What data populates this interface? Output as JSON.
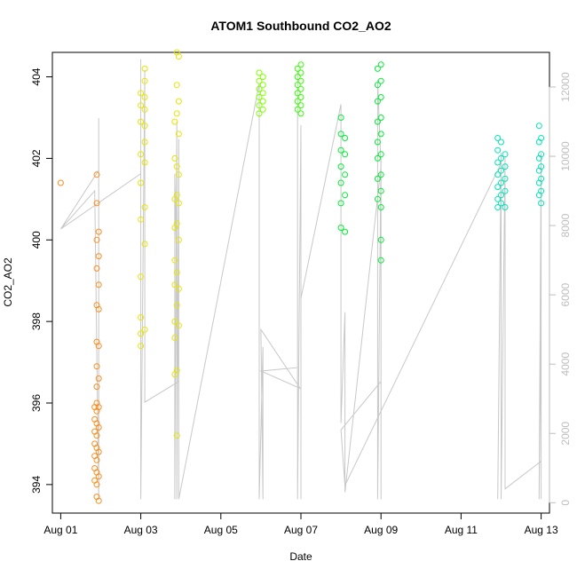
{
  "chart_data": {
    "type": "scatter",
    "title": "ATOM1 Southbound CO2_AO2",
    "xlabel": "Date",
    "ylabel": "CO2_AO2",
    "x_ticks": [
      {
        "label": "Aug 01",
        "day": 0
      },
      {
        "label": "Aug 03",
        "day": 2
      },
      {
        "label": "Aug 05",
        "day": 4
      },
      {
        "label": "Aug 07",
        "day": 6
      },
      {
        "label": "Aug 09",
        "day": 8
      },
      {
        "label": "Aug 11",
        "day": 10
      },
      {
        "label": "Aug 13",
        "day": 12
      }
    ],
    "xlim": [
      "2016-07-31 19:00",
      "2016-08-13 05:00"
    ],
    "ylim": [
      393.3,
      404.6
    ],
    "y_ticks": [
      "394",
      "396",
      "398",
      "400",
      "402",
      "404"
    ],
    "y2_ticks": [
      "0",
      "2000",
      "4000",
      "6000",
      "8000",
      "10000",
      "12000"
    ],
    "y2lim": [
      -300,
      13000
    ],
    "y2_color": "#bebebe",
    "line_color": "#c8c8c8",
    "grid": false,
    "legend": "none",
    "series": [
      {
        "color": "#ff8c1a",
        "x": "2016-07-31 / 2016-08-02 flight",
        "points": [
          [
            "2016-08-01 00:00",
            401.4
          ],
          [
            "2016-08-01 21:36",
            401.6
          ],
          [
            "2016-08-01 21:36",
            400.9
          ],
          [
            "2016-08-01 21:36",
            400.0
          ],
          [
            "2016-08-01 21:36",
            399.3
          ],
          [
            "2016-08-01 21:36",
            398.4
          ],
          [
            "2016-08-01 21:36",
            397.5
          ],
          [
            "2016-08-01 21:36",
            396.9
          ],
          [
            "2016-08-01 21:36",
            396.4
          ],
          [
            "2016-08-01 21:36",
            396.0
          ],
          [
            "2016-08-01 21:36",
            395.8
          ],
          [
            "2016-08-01 21:36",
            395.5
          ],
          [
            "2016-08-01 21:36",
            395.2
          ],
          [
            "2016-08-01 21:36",
            394.9
          ],
          [
            "2016-08-01 21:36",
            394.6
          ],
          [
            "2016-08-01 21:36",
            394.3
          ],
          [
            "2016-08-01 21:36",
            394.0
          ],
          [
            "2016-08-01 21:36",
            393.7
          ],
          [
            "2016-08-01 20:24",
            395.9
          ],
          [
            "2016-08-01 20:24",
            395.6
          ],
          [
            "2016-08-01 20:24",
            395.3
          ],
          [
            "2016-08-01 20:24",
            395.0
          ],
          [
            "2016-08-01 20:24",
            394.7
          ],
          [
            "2016-08-01 20:24",
            394.4
          ],
          [
            "2016-08-01 20:24",
            394.1
          ],
          [
            "2016-08-01 22:48",
            400.2
          ],
          [
            "2016-08-01 22:48",
            399.6
          ],
          [
            "2016-08-01 22:48",
            398.9
          ],
          [
            "2016-08-01 22:48",
            398.3
          ],
          [
            "2016-08-01 22:48",
            397.4
          ],
          [
            "2016-08-01 22:48",
            396.6
          ],
          [
            "2016-08-01 22:48",
            395.9
          ],
          [
            "2016-08-01 22:48",
            395.4
          ],
          [
            "2016-08-01 22:48",
            394.8
          ],
          [
            "2016-08-01 22:48",
            394.2
          ],
          [
            "2016-08-01 22:48",
            393.6
          ]
        ]
      },
      {
        "color": "#e6e600",
        "x": "2016-08-03 flight",
        "points": [
          [
            "2016-08-03 00:00",
            403.6
          ],
          [
            "2016-08-03 00:00",
            403.3
          ],
          [
            "2016-08-03 00:00",
            402.9
          ],
          [
            "2016-08-03 00:00",
            402.1
          ],
          [
            "2016-08-03 00:00",
            401.4
          ],
          [
            "2016-08-03 00:00",
            400.5
          ],
          [
            "2016-08-03 00:00",
            399.1
          ],
          [
            "2016-08-03 00:00",
            398.1
          ],
          [
            "2016-08-03 00:00",
            397.7
          ],
          [
            "2016-08-03 00:00",
            397.4
          ],
          [
            "2016-08-03 02:24",
            404.2
          ],
          [
            "2016-08-03 02:24",
            403.9
          ],
          [
            "2016-08-03 02:24",
            403.5
          ],
          [
            "2016-08-03 02:24",
            403.2
          ],
          [
            "2016-08-03 02:24",
            402.8
          ],
          [
            "2016-08-03 02:24",
            402.4
          ],
          [
            "2016-08-03 02:24",
            401.9
          ],
          [
            "2016-08-03 02:24",
            400.8
          ],
          [
            "2016-08-03 02:24",
            399.9
          ],
          [
            "2016-08-03 02:24",
            397.8
          ]
        ]
      },
      {
        "color": "#e6e600",
        "x": "2016-08-04 flight",
        "points": [
          [
            "2016-08-03 20:24",
            402.9
          ],
          [
            "2016-08-03 20:24",
            402.0
          ],
          [
            "2016-08-03 20:24",
            401.0
          ],
          [
            "2016-08-03 20:24",
            400.3
          ],
          [
            "2016-08-03 20:24",
            399.5
          ],
          [
            "2016-08-03 20:24",
            398.9
          ],
          [
            "2016-08-03 20:24",
            398.0
          ],
          [
            "2016-08-03 20:24",
            397.6
          ],
          [
            "2016-08-03 20:24",
            396.7
          ],
          [
            "2016-08-03 21:36",
            404.6
          ],
          [
            "2016-08-03 21:36",
            403.8
          ],
          [
            "2016-08-03 21:36",
            403.1
          ],
          [
            "2016-08-03 21:36",
            401.8
          ],
          [
            "2016-08-03 21:36",
            401.1
          ],
          [
            "2016-08-03 21:36",
            400.4
          ],
          [
            "2016-08-03 21:36",
            399.2
          ],
          [
            "2016-08-03 21:36",
            398.4
          ],
          [
            "2016-08-03 21:36",
            396.8
          ],
          [
            "2016-08-03 21:36",
            395.2
          ],
          [
            "2016-08-03 22:48",
            404.5
          ],
          [
            "2016-08-03 22:48",
            403.4
          ],
          [
            "2016-08-03 22:48",
            402.6
          ],
          [
            "2016-08-03 22:48",
            401.6
          ],
          [
            "2016-08-03 22:48",
            400.9
          ],
          [
            "2016-08-03 22:48",
            400.0
          ],
          [
            "2016-08-03 22:48",
            398.8
          ],
          [
            "2016-08-03 22:48",
            397.9
          ]
        ]
      },
      {
        "color": "#80ff00",
        "x": "2016-08-06 flight",
        "points": [
          [
            "2016-08-05 23:00",
            404.1
          ],
          [
            "2016-08-05 23:00",
            403.9
          ],
          [
            "2016-08-05 23:00",
            403.7
          ],
          [
            "2016-08-05 23:00",
            403.5
          ],
          [
            "2016-08-05 23:00",
            403.3
          ],
          [
            "2016-08-05 23:00",
            403.1
          ],
          [
            "2016-08-06 01:12",
            404.0
          ],
          [
            "2016-08-06 01:12",
            403.8
          ],
          [
            "2016-08-06 01:12",
            403.6
          ],
          [
            "2016-08-06 01:12",
            403.4
          ],
          [
            "2016-08-06 01:12",
            403.2
          ]
        ]
      },
      {
        "color": "#33ff00",
        "x": "2016-08-07 flight",
        "points": [
          [
            "2016-08-06 22:00",
            404.2
          ],
          [
            "2016-08-06 22:00",
            404.0
          ],
          [
            "2016-08-06 22:00",
            403.8
          ],
          [
            "2016-08-06 22:00",
            403.6
          ],
          [
            "2016-08-06 22:00",
            403.4
          ],
          [
            "2016-08-06 22:00",
            403.2
          ],
          [
            "2016-08-07 00:00",
            404.3
          ],
          [
            "2016-08-07 00:00",
            404.1
          ],
          [
            "2016-08-07 00:00",
            403.9
          ],
          [
            "2016-08-07 00:00",
            403.7
          ],
          [
            "2016-08-07 00:00",
            403.5
          ],
          [
            "2016-08-07 00:00",
            403.3
          ],
          [
            "2016-08-07 00:00",
            403.1
          ]
        ]
      },
      {
        "color": "#00ee33",
        "x": "2016-08-08 flight",
        "points": [
          [
            "2016-08-08 00:00",
            403.0
          ],
          [
            "2016-08-08 00:00",
            402.6
          ],
          [
            "2016-08-08 00:00",
            402.2
          ],
          [
            "2016-08-08 00:00",
            401.8
          ],
          [
            "2016-08-08 00:00",
            401.4
          ],
          [
            "2016-08-08 00:00",
            400.9
          ],
          [
            "2016-08-08 00:00",
            400.3
          ],
          [
            "2016-08-08 02:24",
            402.5
          ],
          [
            "2016-08-08 02:24",
            402.1
          ],
          [
            "2016-08-08 02:24",
            401.6
          ],
          [
            "2016-08-08 02:24",
            401.1
          ],
          [
            "2016-08-08 02:24",
            400.2
          ]
        ]
      },
      {
        "color": "#00ee33",
        "x": "2016-08-09 flight",
        "points": [
          [
            "2016-08-08 22:00",
            404.2
          ],
          [
            "2016-08-08 22:00",
            403.8
          ],
          [
            "2016-08-08 22:00",
            403.4
          ],
          [
            "2016-08-08 22:00",
            402.9
          ],
          [
            "2016-08-08 22:00",
            402.4
          ],
          [
            "2016-08-08 22:00",
            402.0
          ],
          [
            "2016-08-08 22:00",
            401.5
          ],
          [
            "2016-08-08 22:00",
            401.0
          ],
          [
            "2016-08-09 00:00",
            404.3
          ],
          [
            "2016-08-09 00:00",
            403.9
          ],
          [
            "2016-08-09 00:00",
            403.5
          ],
          [
            "2016-08-09 00:00",
            403.0
          ],
          [
            "2016-08-09 00:00",
            402.6
          ],
          [
            "2016-08-09 00:00",
            402.1
          ],
          [
            "2016-08-09 00:00",
            401.6
          ],
          [
            "2016-08-09 00:00",
            401.2
          ],
          [
            "2016-08-09 00:00",
            400.8
          ],
          [
            "2016-08-09 00:00",
            400.0
          ],
          [
            "2016-08-09 00:00",
            399.5
          ]
        ]
      },
      {
        "color": "#00e6b4",
        "x": "2016-08-12 flight",
        "points": [
          [
            "2016-08-11 22:00",
            402.5
          ],
          [
            "2016-08-11 22:00",
            402.2
          ],
          [
            "2016-08-11 22:00",
            401.9
          ],
          [
            "2016-08-11 22:00",
            401.6
          ],
          [
            "2016-08-11 22:00",
            401.3
          ],
          [
            "2016-08-11 22:00",
            401.0
          ],
          [
            "2016-08-11 22:00",
            400.8
          ],
          [
            "2016-08-12 00:00",
            402.4
          ],
          [
            "2016-08-12 00:00",
            402.0
          ],
          [
            "2016-08-12 00:00",
            401.7
          ],
          [
            "2016-08-12 00:00",
            401.4
          ],
          [
            "2016-08-12 00:00",
            401.1
          ],
          [
            "2016-08-12 00:00",
            400.9
          ],
          [
            "2016-08-12 02:24",
            402.1
          ],
          [
            "2016-08-12 02:24",
            401.8
          ],
          [
            "2016-08-12 02:24",
            401.5
          ],
          [
            "2016-08-12 02:24",
            401.2
          ],
          [
            "2016-08-12 02:24",
            400.8
          ]
        ]
      },
      {
        "color": "#00e6b4",
        "x": "2016-08-13 flight",
        "points": [
          [
            "2016-08-12 22:48",
            402.8
          ],
          [
            "2016-08-12 22:48",
            402.4
          ],
          [
            "2016-08-12 22:48",
            402.0
          ],
          [
            "2016-08-12 22:48",
            401.7
          ],
          [
            "2016-08-12 22:48",
            401.4
          ],
          [
            "2016-08-12 22:48",
            401.1
          ],
          [
            "2016-08-13 00:00",
            402.5
          ],
          [
            "2016-08-13 00:00",
            402.1
          ],
          [
            "2016-08-13 00:00",
            401.8
          ],
          [
            "2016-08-13 00:00",
            401.5
          ],
          [
            "2016-08-13 00:00",
            401.2
          ],
          [
            "2016-08-13 00:00",
            400.9
          ]
        ]
      }
    ],
    "altitude_line": [
      [
        "2016-08-01 00:00",
        7900
      ],
      [
        "2016-08-01 22:48",
        9600
      ],
      [
        "2016-08-01 22:48",
        11100
      ],
      [
        "2016-08-01 22:48",
        100
      ],
      [
        "2016-08-01 20:24",
        9000
      ],
      [
        "2016-08-01 00:00",
        7900
      ],
      [
        "2016-08-03 00:00",
        9500
      ],
      [
        "2016-08-03 00:00",
        12800
      ],
      [
        "2016-08-03 00:00",
        100
      ],
      [
        "2016-08-03 02:24",
        12500
      ],
      [
        "2016-08-03 02:24",
        2900
      ],
      [
        "2016-08-03 22:48",
        3500
      ],
      [
        "2016-08-03 20:24",
        9500
      ],
      [
        "2016-08-03 20:24",
        100
      ],
      [
        "2016-08-03 21:36",
        11000
      ],
      [
        "2016-08-03 21:36",
        100
      ],
      [
        "2016-08-03 22:48",
        10500
      ],
      [
        "2016-08-03 22:48",
        100
      ],
      [
        "2016-08-05 23:00",
        12100
      ],
      [
        "2016-08-05 23:00",
        100
      ],
      [
        "2016-08-06 01:12",
        4500
      ],
      [
        "2016-08-06 01:12",
        100
      ],
      [
        "2016-08-06 00:00",
        5000
      ],
      [
        "2016-08-06 23:30",
        3300
      ],
      [
        "2016-08-06 00:00",
        3800
      ],
      [
        "2016-08-06 22:00",
        3900
      ],
      [
        "2016-08-06 22:00",
        12500
      ],
      [
        "2016-08-06 22:00",
        100
      ],
      [
        "2016-08-07 00:00",
        10900
      ],
      [
        "2016-08-07 00:00",
        100
      ],
      [
        "2016-08-07 00:00",
        5900
      ],
      [
        "2016-08-08 00:00",
        11500
      ],
      [
        "2016-08-08 00:00",
        2300
      ],
      [
        "2016-08-08 02:24",
        5500
      ],
      [
        "2016-08-08 02:24",
        300
      ],
      [
        "2016-08-09 00:00",
        9700
      ],
      [
        "2016-08-08 22:00",
        12200
      ],
      [
        "2016-08-08 22:00",
        100
      ],
      [
        "2016-08-09 00:00",
        10000
      ],
      [
        "2016-08-09 00:00",
        100
      ],
      [
        "2016-08-09 00:00",
        3500
      ],
      [
        "2016-08-08 00:00",
        2100
      ],
      [
        "2016-08-08 02:24",
        500
      ],
      [
        "2016-08-12 00:00",
        9800
      ],
      [
        "2016-08-11 22:00",
        100
      ],
      [
        "2016-08-12 00:00",
        10100
      ],
      [
        "2016-08-12 00:00",
        100
      ],
      [
        "2016-08-12 02:24",
        10000
      ],
      [
        "2016-08-12 02:24",
        400
      ],
      [
        "2016-08-13 00:00",
        1200
      ],
      [
        "2016-08-13 00:00",
        5200
      ],
      [
        "2016-08-12 22:48",
        100
      ],
      [
        "2016-08-13 00:00",
        10100
      ],
      [
        "2016-08-13 00:00",
        100
      ]
    ]
  }
}
